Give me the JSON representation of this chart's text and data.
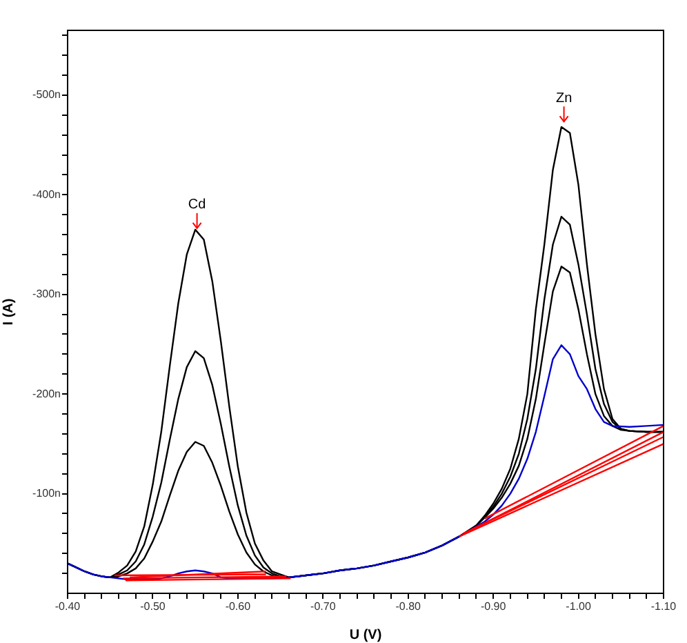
{
  "chart_data": {
    "type": "line",
    "xlabel": "U (V)",
    "ylabel": "I (A)",
    "xlim": [
      -0.4,
      -1.1
    ],
    "xticks": [
      {
        "value": -0.4,
        "label": "-0.40"
      },
      {
        "value": -0.42,
        "label": null
      },
      {
        "value": -0.44,
        "label": null
      },
      {
        "value": -0.46,
        "label": null
      },
      {
        "value": -0.48,
        "label": null
      },
      {
        "value": -0.5,
        "label": "-0.50"
      },
      {
        "value": -0.52,
        "label": null
      },
      {
        "value": -0.54,
        "label": null
      },
      {
        "value": -0.56,
        "label": null
      },
      {
        "value": -0.58,
        "label": null
      },
      {
        "value": -0.6,
        "label": "-0.60"
      },
      {
        "value": -0.62,
        "label": null
      },
      {
        "value": -0.64,
        "label": null
      },
      {
        "value": -0.66,
        "label": null
      },
      {
        "value": -0.68,
        "label": null
      },
      {
        "value": -0.7,
        "label": "-0.70"
      },
      {
        "value": -0.72,
        "label": null
      },
      {
        "value": -0.74,
        "label": null
      },
      {
        "value": -0.76,
        "label": null
      },
      {
        "value": -0.78,
        "label": null
      },
      {
        "value": -0.8,
        "label": "-0.80"
      },
      {
        "value": -0.82,
        "label": null
      },
      {
        "value": -0.84,
        "label": null
      },
      {
        "value": -0.86,
        "label": null
      },
      {
        "value": -0.88,
        "label": null
      },
      {
        "value": -0.9,
        "label": "-0.90"
      },
      {
        "value": -0.92,
        "label": null
      },
      {
        "value": -0.94,
        "label": null
      },
      {
        "value": -0.96,
        "label": null
      },
      {
        "value": -0.98,
        "label": null
      },
      {
        "value": -1.0,
        "label": "-1.00"
      },
      {
        "value": -1.02,
        "label": null
      },
      {
        "value": -1.04,
        "label": null
      },
      {
        "value": -1.06,
        "label": null
      },
      {
        "value": -1.08,
        "label": null
      },
      {
        "value": -1.1,
        "label": "-1.10"
      }
    ],
    "ylim": [
      0,
      -565
    ],
    "yticks": [
      {
        "value": -20,
        "label": null
      },
      {
        "value": -40,
        "label": null
      },
      {
        "value": -60,
        "label": null
      },
      {
        "value": -80,
        "label": null
      },
      {
        "value": -100,
        "label": "-100n"
      },
      {
        "value": -120,
        "label": null
      },
      {
        "value": -140,
        "label": null
      },
      {
        "value": -160,
        "label": null
      },
      {
        "value": -180,
        "label": null
      },
      {
        "value": -200,
        "label": "-200n"
      },
      {
        "value": -220,
        "label": null
      },
      {
        "value": -240,
        "label": null
      },
      {
        "value": -260,
        "label": null
      },
      {
        "value": -280,
        "label": null
      },
      {
        "value": -300,
        "label": "-300n"
      },
      {
        "value": -320,
        "label": null
      },
      {
        "value": -340,
        "label": null
      },
      {
        "value": -360,
        "label": null
      },
      {
        "value": -380,
        "label": null
      },
      {
        "value": -400,
        "label": "-400n"
      },
      {
        "value": -420,
        "label": null
      },
      {
        "value": -440,
        "label": null
      },
      {
        "value": -460,
        "label": null
      },
      {
        "value": -480,
        "label": null
      },
      {
        "value": -500,
        "label": "-500n"
      },
      {
        "value": -520,
        "label": null
      },
      {
        "value": -540,
        "label": null
      },
      {
        "value": -560,
        "label": null
      }
    ],
    "grid": false,
    "legend": false,
    "marker": "none",
    "line_style": "solid",
    "annotations": [
      {
        "text": "Cd",
        "x": -0.552,
        "y": -365
      },
      {
        "text": "Zn",
        "x": -0.983,
        "y": -472
      }
    ],
    "series": [
      {
        "color": "#000000",
        "x": [
          -0.4,
          -0.41,
          -0.42,
          -0.43,
          -0.44,
          -0.45,
          -0.46,
          -0.47,
          -0.48,
          -0.49,
          -0.5,
          -0.51,
          -0.52,
          -0.53,
          -0.54,
          -0.55,
          -0.56,
          -0.57,
          -0.58,
          -0.59,
          -0.6,
          -0.61,
          -0.62,
          -0.63,
          -0.64,
          -0.65,
          -0.66,
          -0.67,
          -0.68,
          -0.69,
          -0.7,
          -0.72,
          -0.74,
          -0.76,
          -0.78,
          -0.8,
          -0.82,
          -0.84,
          -0.86,
          -0.88,
          -0.89,
          -0.9,
          -0.91,
          -0.92,
          -0.93,
          -0.94,
          -0.95,
          -0.96,
          -0.97,
          -0.98,
          -0.99,
          -1.0,
          -1.01,
          -1.02,
          -1.03,
          -1.04,
          -1.05,
          -1.06,
          -1.08,
          -1.1
        ],
        "values": [
          -30,
          -26,
          -22,
          -19,
          -17,
          -16,
          -21,
          -28,
          -42,
          -67,
          -109,
          -162,
          -228,
          -291,
          -340,
          -365,
          -355,
          -313,
          -253,
          -187,
          -127,
          -81,
          -50,
          -33,
          -22,
          -19,
          -16,
          -17,
          -18,
          -19,
          -20,
          -23,
          -25,
          -28,
          -32,
          -36,
          -41,
          -48,
          -57,
          -68,
          -78,
          -90,
          -105,
          -125,
          -155,
          -200,
          -285,
          -350,
          -425,
          -468,
          -462,
          -410,
          -330,
          -260,
          -205,
          -175,
          -165,
          -163,
          -162,
          -162
        ]
      },
      {
        "color": "#000000",
        "x": [
          -0.4,
          -0.41,
          -0.42,
          -0.43,
          -0.44,
          -0.45,
          -0.46,
          -0.47,
          -0.48,
          -0.49,
          -0.5,
          -0.51,
          -0.52,
          -0.53,
          -0.54,
          -0.55,
          -0.56,
          -0.57,
          -0.58,
          -0.59,
          -0.6,
          -0.61,
          -0.62,
          -0.63,
          -0.64,
          -0.65,
          -0.66,
          -0.67,
          -0.68,
          -0.69,
          -0.7,
          -0.72,
          -0.74,
          -0.76,
          -0.78,
          -0.8,
          -0.82,
          -0.84,
          -0.86,
          -0.88,
          -0.89,
          -0.9,
          -0.91,
          -0.92,
          -0.93,
          -0.94,
          -0.95,
          -0.96,
          -0.97,
          -0.98,
          -0.99,
          -1.0,
          -1.01,
          -1.02,
          -1.03,
          -1.04,
          -1.05,
          -1.06,
          -1.08,
          -1.1
        ],
        "values": [
          -30,
          -26,
          -22,
          -19,
          -17,
          -16,
          -19,
          -23,
          -32,
          -49,
          -77,
          -111,
          -154,
          -195,
          -227,
          -243,
          -236,
          -209,
          -170,
          -127,
          -88,
          -58,
          -38,
          -26,
          -20,
          -17,
          -16,
          -17,
          -18,
          -19,
          -20,
          -23,
          -25,
          -28,
          -32,
          -36,
          -41,
          -48,
          -57,
          -68,
          -77,
          -87,
          -100,
          -117,
          -140,
          -175,
          -225,
          -295,
          -350,
          -378,
          -370,
          -330,
          -280,
          -225,
          -190,
          -172,
          -165,
          -163,
          -162,
          -162
        ]
      },
      {
        "color": "#000000",
        "x": [
          -0.4,
          -0.41,
          -0.42,
          -0.43,
          -0.44,
          -0.45,
          -0.46,
          -0.47,
          -0.48,
          -0.49,
          -0.5,
          -0.51,
          -0.52,
          -0.53,
          -0.54,
          -0.55,
          -0.56,
          -0.57,
          -0.58,
          -0.59,
          -0.6,
          -0.61,
          -0.62,
          -0.63,
          -0.64,
          -0.65,
          -0.66,
          -0.67,
          -0.68,
          -0.69,
          -0.7,
          -0.72,
          -0.74,
          -0.76,
          -0.78,
          -0.8,
          -0.82,
          -0.84,
          -0.86,
          -0.88,
          -0.89,
          -0.9,
          -0.91,
          -0.92,
          -0.93,
          -0.94,
          -0.95,
          -0.96,
          -0.97,
          -0.98,
          -0.99,
          -1.0,
          -1.01,
          -1.02,
          -1.03,
          -1.04,
          -1.05,
          -1.06,
          -1.08,
          -1.1
        ],
        "values": [
          -30,
          -26,
          -22,
          -19,
          -17,
          -16,
          -17,
          -20,
          -25,
          -35,
          -52,
          -72,
          -98,
          -123,
          -142,
          -152,
          -148,
          -131,
          -108,
          -82,
          -59,
          -41,
          -29,
          -22,
          -18,
          -16,
          -16,
          -17,
          -18,
          -19,
          -20,
          -23,
          -25,
          -28,
          -32,
          -36,
          -41,
          -48,
          -57,
          -68,
          -76,
          -85,
          -96,
          -110,
          -128,
          -155,
          -195,
          -250,
          -303,
          -328,
          -322,
          -285,
          -240,
          -200,
          -178,
          -168,
          -164,
          -163,
          -162,
          -162
        ]
      },
      {
        "color": "#0000cc",
        "x": [
          -0.4,
          -0.41,
          -0.42,
          -0.43,
          -0.44,
          -0.45,
          -0.46,
          -0.47,
          -0.48,
          -0.5,
          -0.51,
          -0.52,
          -0.53,
          -0.54,
          -0.55,
          -0.56,
          -0.57,
          -0.58,
          -0.59,
          -0.6,
          -0.62,
          -0.64,
          -0.66,
          -0.67,
          -0.68,
          -0.69,
          -0.7,
          -0.72,
          -0.74,
          -0.76,
          -0.78,
          -0.8,
          -0.82,
          -0.84,
          -0.86,
          -0.88,
          -0.89,
          -0.9,
          -0.91,
          -0.92,
          -0.93,
          -0.94,
          -0.95,
          -0.96,
          -0.97,
          -0.98,
          -0.99,
          -1.0,
          -1.01,
          -1.02,
          -1.03,
          -1.04,
          -1.06,
          -1.08,
          -1.1
        ],
        "values": [
          -30,
          -26,
          -22,
          -19,
          -17,
          -16,
          -15,
          -14,
          -14,
          -14,
          -15,
          -17,
          -20,
          -22,
          -23,
          -22,
          -20,
          -16,
          -15,
          -15,
          -15,
          -15,
          -16,
          -17,
          -18,
          -19,
          -20,
          -23,
          -25,
          -28,
          -32,
          -36,
          -41,
          -48,
          -57,
          -67,
          -72,
          -79,
          -88,
          -100,
          -115,
          -135,
          -162,
          -198,
          -235,
          -249,
          -240,
          -218,
          -205,
          -185,
          -172,
          -168,
          -167,
          -168,
          -169
        ]
      },
      {
        "color": "#ff0000",
        "x": [
          -0.455,
          -0.633
        ],
        "values": [
          -18,
          -19
        ]
      },
      {
        "color": "#ff0000",
        "x": [
          -0.465,
          -0.657
        ],
        "values": [
          -15,
          -17
        ]
      },
      {
        "color": "#ff0000",
        "x": [
          -0.468,
          -0.662
        ],
        "values": [
          -13,
          -15
        ]
      },
      {
        "color": "#ff0000",
        "x": [
          -0.473,
          -0.633
        ],
        "values": [
          -16,
          -22
        ]
      },
      {
        "color": "#ff0000",
        "x": [
          -0.86,
          -1.1
        ],
        "values": [
          -57,
          -150
        ]
      },
      {
        "color": "#ff0000",
        "x": [
          -0.865,
          -1.1
        ],
        "values": [
          -60,
          -157
        ]
      },
      {
        "color": "#ff0000",
        "x": [
          -0.87,
          -1.1
        ],
        "values": [
          -62,
          -162
        ]
      },
      {
        "color": "#ff0000",
        "x": [
          -0.89,
          -1.1
        ],
        "values": [
          -75,
          -168
        ]
      }
    ]
  }
}
